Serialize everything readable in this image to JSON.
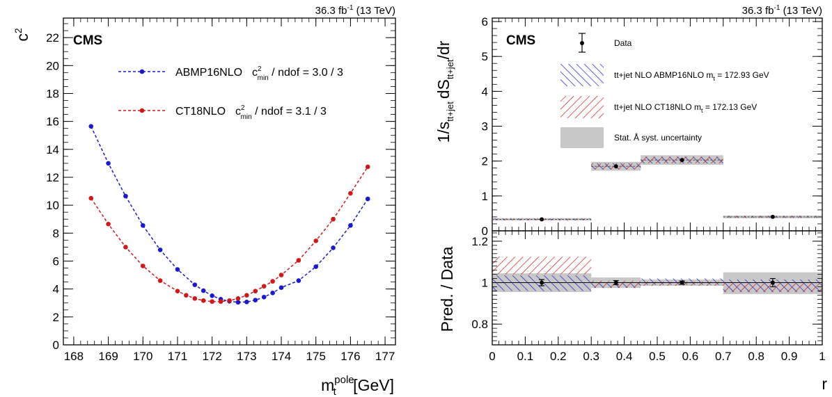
{
  "chart_data": [
    {
      "type": "line",
      "experiment": "CMS",
      "luminosity": "36.3 fb",
      "luminosity_exp": "-1",
      "energy": " (13 TeV)",
      "xlabel": "m",
      "xlabel_sup": "pole",
      "xlabel_sub": "t",
      "xlabel_unit": " [GeV]",
      "ylabel": "c",
      "ylabel_sup": "2",
      "xlim": [
        167.7,
        177.3
      ],
      "ylim": [
        0,
        23.4
      ],
      "xticks": [
        "168",
        "169",
        "170",
        "171",
        "172",
        "173",
        "174",
        "175",
        "176",
        "177"
      ],
      "yticks": [
        "0",
        "2",
        "4",
        "6",
        "8",
        "10",
        "12",
        "14",
        "16",
        "18",
        "20",
        "22"
      ],
      "series": [
        {
          "name": "ABMP16NLO",
          "legend_chi": "c",
          "legend_chi_sup": "2",
          "legend_chi_sub": "min",
          "legend_tail": " / ndof = 3.0 / 3",
          "color": "#1a1ac8",
          "x": [
            168.5,
            169.0,
            169.5,
            170.0,
            170.5,
            171.0,
            171.5,
            171.75,
            172.0,
            172.25,
            172.5,
            172.75,
            173.0,
            173.25,
            173.5,
            173.75,
            174.0,
            174.5,
            175.0,
            175.5,
            176.0,
            176.5
          ],
          "y": [
            15.65,
            13.0,
            10.65,
            8.55,
            6.8,
            5.4,
            4.3,
            3.88,
            3.52,
            3.27,
            3.12,
            3.05,
            3.07,
            3.2,
            3.42,
            3.72,
            4.1,
            4.6,
            5.6,
            6.95,
            8.55,
            10.45
          ]
        },
        {
          "name": "CT18NLO",
          "legend_chi": "c",
          "legend_chi_sup": "2",
          "legend_chi_sub": "min",
          "legend_tail": " / ndof = 3.1 / 3",
          "color": "#cc1a1a",
          "x": [
            168.5,
            169.0,
            169.5,
            170.0,
            170.5,
            171.0,
            171.25,
            171.5,
            171.75,
            172.0,
            172.25,
            172.5,
            172.75,
            173.0,
            173.25,
            173.5,
            173.75,
            174.0,
            174.5,
            175.0,
            175.5,
            176.0,
            176.5
          ],
          "y": [
            10.5,
            8.65,
            7.0,
            5.65,
            4.6,
            3.85,
            3.55,
            3.32,
            3.17,
            3.1,
            3.1,
            3.17,
            3.32,
            3.55,
            3.85,
            4.2,
            4.55,
            5.0,
            6.05,
            7.45,
            9.0,
            10.85,
            12.75
          ]
        }
      ]
    },
    {
      "type": "bar",
      "experiment": "CMS",
      "luminosity": "36.3 fb",
      "luminosity_exp": "-1",
      "energy": " (13 TeV)",
      "xlabel": "r",
      "ylabel_parts": [
        "1/s",
        "dS",
        "/dr"
      ],
      "ylabel_sub": "tt+jet",
      "xlim": [
        0,
        1
      ],
      "ylim": [
        0,
        6.1
      ],
      "xticks": [
        "0",
        "0.1",
        "0.2",
        "0.3",
        "0.4",
        "0.5",
        "0.6",
        "0.7",
        "0.8",
        "0.9",
        "1"
      ],
      "yticks": [
        "0",
        "1",
        "2",
        "3",
        "4",
        "5",
        "6"
      ],
      "bins": [
        [
          0,
          0.3
        ],
        [
          0.3,
          0.45
        ],
        [
          0.45,
          0.7
        ],
        [
          0.7,
          1.0
        ]
      ],
      "data": {
        "name": "Data",
        "x": [
          0.15,
          0.375,
          0.575,
          0.85
        ],
        "y": [
          0.33,
          1.85,
          2.03,
          0.4
        ]
      },
      "legend": [
        {
          "label": "Data"
        },
        {
          "label": "tt+jet NLO ABMP16NLO m",
          "sub": "t",
          "tail": " = 172.93 GeV",
          "color": "#1a1ac8"
        },
        {
          "label": "tt+jet NLO CT18NLO m",
          "sub": "t",
          "tail": " = 172.13 GeV",
          "color": "#cc1a1a"
        },
        {
          "label": "Stat. Å syst. uncertainty",
          "color": "#c8c8c8"
        }
      ]
    },
    {
      "type": "bar",
      "xlabel": "r",
      "ylabel": "Pred. / Data",
      "xlim": [
        0,
        1
      ],
      "ylim": [
        0.7,
        1.25
      ],
      "yticks": [
        "0.8",
        "1",
        "1.2"
      ],
      "bins": [
        [
          0,
          0.3
        ],
        [
          0.3,
          0.45
        ],
        [
          0.45,
          0.7
        ],
        [
          0.7,
          1.0
        ]
      ],
      "data_ratio": {
        "x": [
          0.15,
          0.375,
          0.575,
          0.85
        ],
        "y": [
          1.0,
          1.0,
          1.0,
          1.0
        ],
        "err": [
          0.015,
          0.01,
          0.008,
          0.02
        ]
      },
      "uncertainty_band": {
        "lo": [
          0.955,
          0.975,
          0.985,
          0.945
        ],
        "hi": [
          1.045,
          1.025,
          1.015,
          1.05
        ]
      },
      "series": [
        {
          "name": "ABMP16NLO",
          "lo": [
            0.96,
            0.975,
            0.99,
            0.955
          ],
          "hi": [
            1.035,
            1.0,
            1.02,
            1.015
          ]
        },
        {
          "name": "CT18NLO",
          "lo": [
            1.04,
            0.975,
            0.985,
            0.955
          ],
          "hi": [
            1.125,
            1.01,
            1.005,
            1.0
          ]
        }
      ]
    }
  ]
}
